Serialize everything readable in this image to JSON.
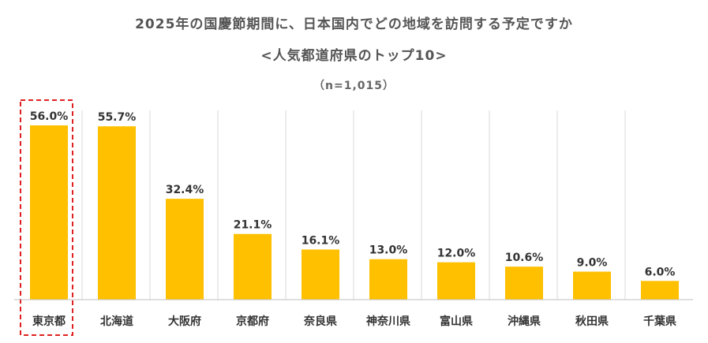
{
  "chart_data": {
    "type": "bar",
    "title": "2025年の国慶節期間に、日本国内でどの地域を訪問する予定ですか",
    "subtitle": "<人気都道府県のトップ10>",
    "note": "（n=1,015）",
    "categories": [
      "東京都",
      "北海道",
      "大阪府",
      "京都府",
      "奈良県",
      "神奈川県",
      "富山県",
      "沖縄県",
      "秋田県",
      "千葉県"
    ],
    "values": [
      56.0,
      55.7,
      32.4,
      21.1,
      16.1,
      13.0,
      12.0,
      10.6,
      9.0,
      6.0
    ],
    "value_labels": [
      "56.0%",
      "55.7%",
      "32.4%",
      "21.1%",
      "16.1%",
      "13.0%",
      "12.0%",
      "10.6%",
      "9.0%",
      "6.0%"
    ],
    "highlight_category": "東京都",
    "bar_color": "#FFC000",
    "highlight_border_color": "#E02020",
    "grid": "vertical separators",
    "ylim": [
      0,
      60
    ]
  }
}
